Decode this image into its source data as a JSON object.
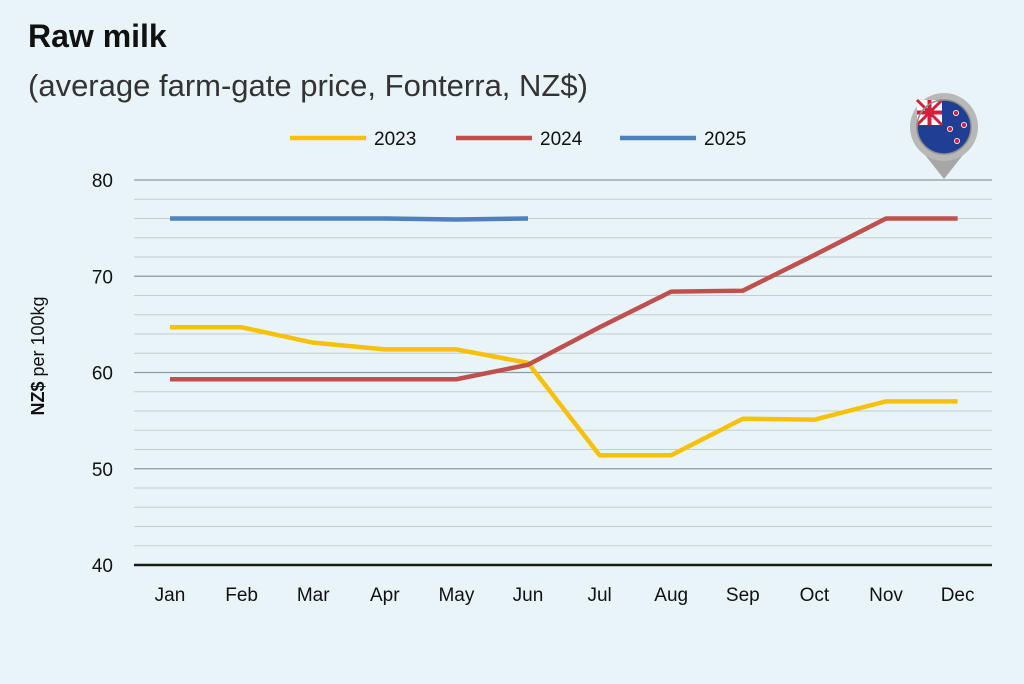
{
  "chart_data": {
    "type": "line",
    "title": "Raw milk",
    "subtitle": "(average farm-gate price, Fonterra, NZ$)",
    "ylabel_bold": "NZ$",
    "ylabel_rest": " per 100kg",
    "xlabel": "",
    "ylim": [
      40,
      80
    ],
    "yticks": [
      40,
      50,
      60,
      70,
      80
    ],
    "categories": [
      "Jan",
      "Feb",
      "Mar",
      "Apr",
      "May",
      "Jun",
      "Jul",
      "Aug",
      "Sep",
      "Oct",
      "Nov",
      "Dec"
    ],
    "grid": true,
    "legend_position": "top",
    "series": [
      {
        "name": "2023",
        "color": "#f7c10a",
        "values": [
          64.7,
          64.7,
          63.1,
          62.4,
          62.4,
          61.0,
          51.4,
          51.4,
          55.2,
          55.1,
          57.0,
          57.0
        ]
      },
      {
        "name": "2024",
        "color": "#c0504d",
        "values": [
          59.3,
          59.3,
          59.3,
          59.3,
          59.3,
          60.8,
          64.7,
          68.4,
          68.5,
          72.2,
          76.0,
          76.0
        ]
      },
      {
        "name": "2025",
        "color": "#4f81bd",
        "values": [
          76.0,
          76.0,
          76.0,
          76.0,
          75.9,
          76.0,
          null,
          null,
          null,
          null,
          null,
          null
        ]
      }
    ]
  },
  "badge": {
    "icon": "new-zealand-flag-icon",
    "pin_color": "#b8b8b8",
    "flag_blue": "#1f3f94",
    "flag_red": "#d21f3c"
  }
}
